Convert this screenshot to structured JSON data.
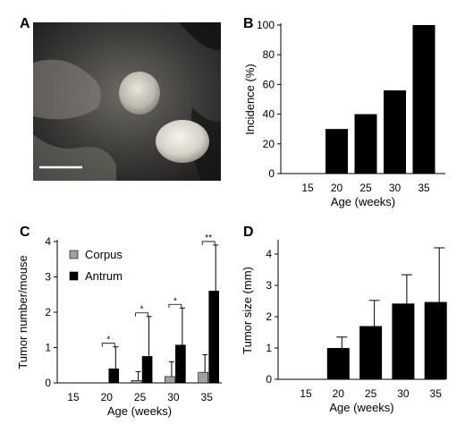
{
  "panels": {
    "A": {
      "label": "A"
    },
    "B": {
      "label": "B"
    },
    "C": {
      "label": "C"
    },
    "D": {
      "label": "D"
    }
  },
  "chart_data": [
    {
      "panel": "B",
      "type": "bar",
      "categories": [
        "15",
        "20",
        "25",
        "30",
        "35"
      ],
      "values": [
        0,
        30,
        40,
        56,
        100
      ],
      "xlabel": "Age (weeks)",
      "ylabel": "Incidence (%)",
      "ylim": [
        0,
        100
      ],
      "yticks": [
        0,
        20,
        40,
        60,
        80,
        100
      ],
      "colors": {
        "bar": "#000000"
      }
    },
    {
      "panel": "C",
      "type": "bar",
      "categories": [
        "15",
        "20",
        "25",
        "30",
        "35"
      ],
      "series": [
        {
          "name": "Corpus",
          "values": [
            0,
            0,
            0.07,
            0.18,
            0.3
          ],
          "error": [
            0,
            0,
            0.25,
            0.42,
            0.5
          ],
          "color": "#a0a0a0"
        },
        {
          "name": "Antrum",
          "values": [
            0,
            0.4,
            0.75,
            1.07,
            2.6
          ],
          "error": [
            0,
            0.62,
            1.13,
            1.05,
            1.3
          ],
          "color": "#000000"
        }
      ],
      "significance": [
        {
          "category": "20",
          "mark": "*"
        },
        {
          "category": "25",
          "mark": "*"
        },
        {
          "category": "30",
          "mark": "*"
        },
        {
          "category": "35",
          "mark": "**"
        }
      ],
      "xlabel": "Age (weeks)",
      "ylabel": "Tumor number/mouse",
      "ylim": [
        0,
        4
      ],
      "yticks": [
        0,
        1,
        2,
        3,
        4
      ],
      "legend": "top-left"
    },
    {
      "panel": "D",
      "type": "bar",
      "categories": [
        "15",
        "20",
        "25",
        "30",
        "35"
      ],
      "values": [
        0,
        1.0,
        1.7,
        2.42,
        2.47
      ],
      "error": [
        0,
        0.35,
        0.82,
        0.92,
        1.73
      ],
      "xlabel": "Age (weeks)",
      "ylabel": "Tumor size (mm)",
      "ylim": [
        0,
        4.4
      ],
      "yticks": [
        0,
        1,
        2,
        3,
        4
      ],
      "colors": {
        "bar": "#000000"
      }
    }
  ]
}
